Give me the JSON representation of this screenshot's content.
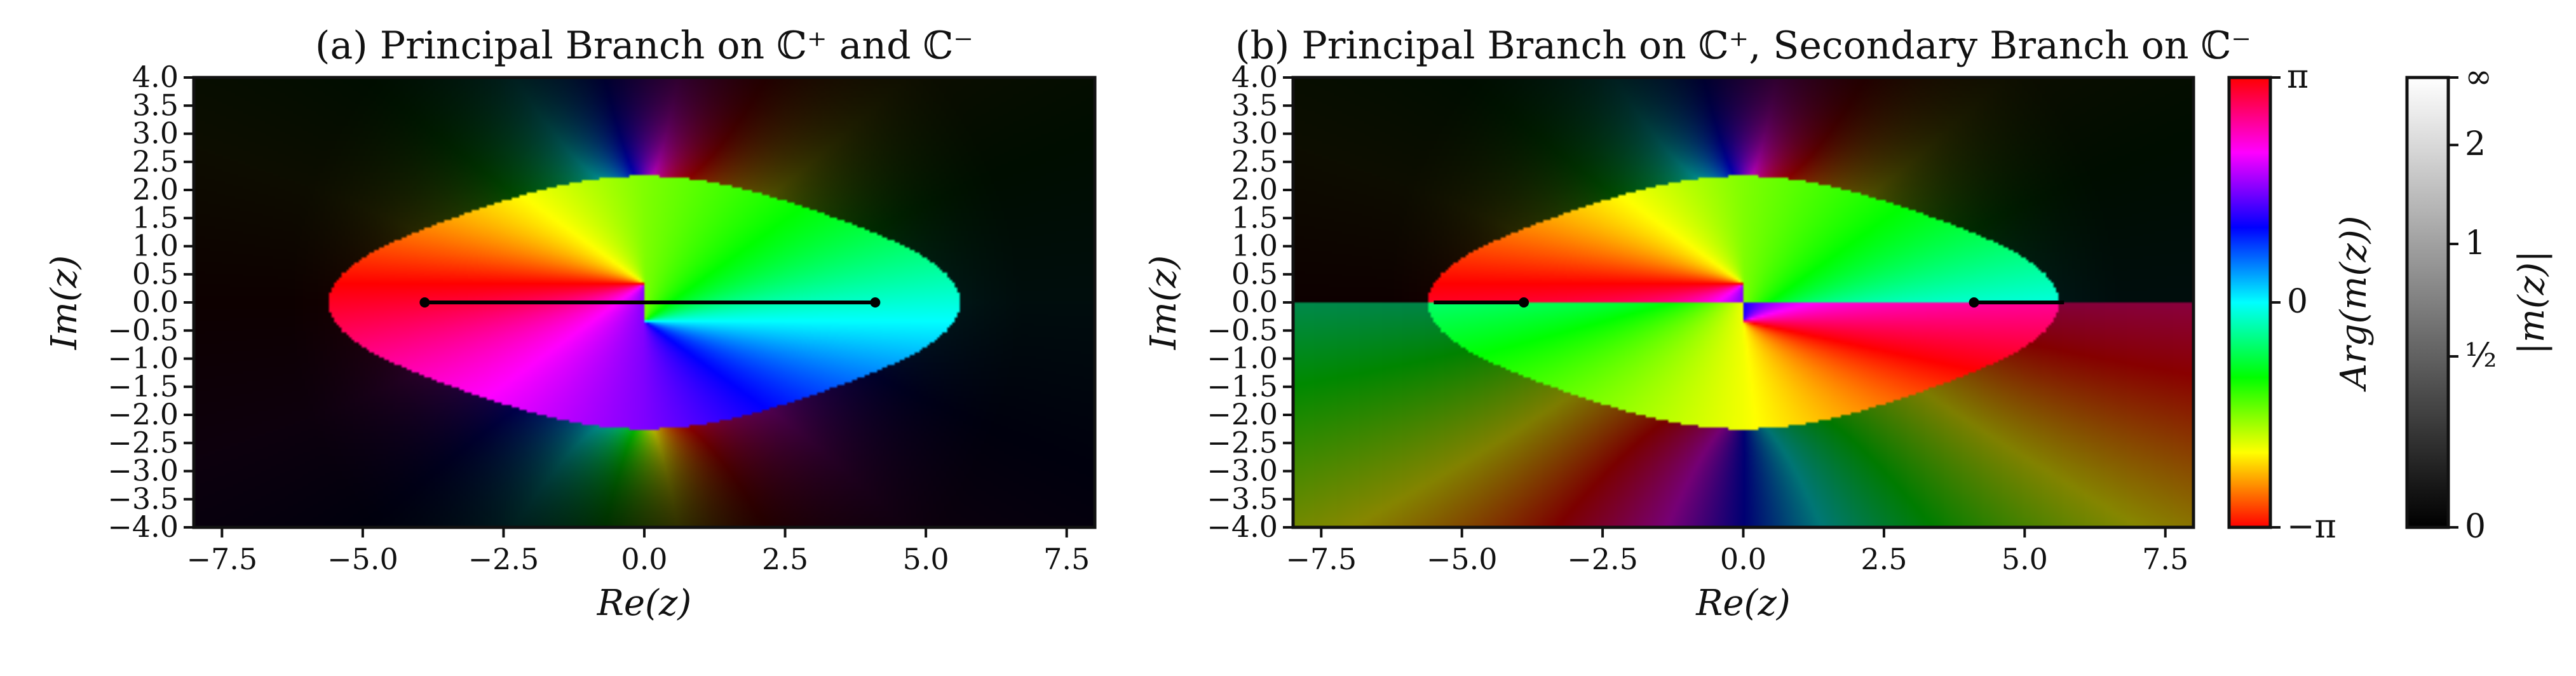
{
  "chart_data": [
    {
      "type": "heatmap",
      "title": "(a) Principal Branch on ℂ⁺ and ℂ⁻",
      "xlabel": "Re(z)",
      "ylabel": "Im(z)",
      "xlim": [
        -8.0,
        8.0
      ],
      "ylim": [
        -4.0,
        4.0
      ],
      "xticks": [
        -7.5,
        -5.0,
        -2.5,
        0.0,
        2.5,
        5.0,
        7.5
      ],
      "xtick_labels": [
        "−7.5",
        "−5.0",
        "−2.5",
        "0.0",
        "2.5",
        "5.0",
        "7.5"
      ],
      "yticks": [
        4.0,
        3.5,
        3.0,
        2.5,
        2.0,
        1.5,
        1.0,
        0.5,
        0.0,
        -0.5,
        -1.0,
        -1.5,
        -2.0,
        -2.5,
        -3.0,
        -3.5,
        -4.0
      ],
      "ytick_labels": [
        "4.0",
        "3.5",
        "3.0",
        "2.5",
        "2.0",
        "1.5",
        "1.0",
        "0.5",
        "0.0",
        "−0.5",
        "−1.0",
        "−1.5",
        "−2.0",
        "−2.5",
        "−3.0",
        "−3.5",
        "−4.0"
      ],
      "branch_cut": {
        "x": [
          -3.9,
          4.1
        ],
        "y": [
          0.0,
          0.0
        ]
      },
      "branch": "principal"
    },
    {
      "type": "heatmap",
      "title": "(b) Principal Branch on ℂ⁺, Secondary Branch on ℂ⁻",
      "xlabel": "Re(z)",
      "ylabel": "Im(z)",
      "xlim": [
        -8.0,
        8.0
      ],
      "ylim": [
        -4.0,
        4.0
      ],
      "xticks": [
        -7.5,
        -5.0,
        -2.5,
        0.0,
        2.5,
        5.0,
        7.5
      ],
      "xtick_labels": [
        "−7.5",
        "−5.0",
        "−2.5",
        "0.0",
        "2.5",
        "5.0",
        "7.5"
      ],
      "yticks": [
        4.0,
        3.5,
        3.0,
        2.5,
        2.0,
        1.5,
        1.0,
        0.5,
        0.0,
        -0.5,
        -1.0,
        -1.5,
        -2.0,
        -2.5,
        -3.0,
        -3.5,
        -4.0
      ],
      "ytick_labels": [
        "4.0",
        "3.5",
        "3.0",
        "2.5",
        "2.0",
        "1.5",
        "1.0",
        "0.5",
        "0.0",
        "−0.5",
        "−1.0",
        "−1.5",
        "−2.0",
        "−2.5",
        "−3.0",
        "−3.5",
        "−4.0"
      ],
      "branch_cuts": [
        {
          "x": [
            -5.5,
            -3.9
          ],
          "y": [
            0.0,
            0.0
          ]
        },
        {
          "x": [
            4.1,
            5.7
          ],
          "y": [
            0.0,
            0.0
          ]
        }
      ],
      "branch": "secondary"
    }
  ],
  "colorbars": [
    {
      "label": "Arg(m(z))",
      "range": [
        -3.1416,
        3.1416
      ],
      "ticks": [
        3.1416,
        0,
        -3.1416
      ],
      "tick_labels": [
        "π",
        "0",
        "−π"
      ]
    },
    {
      "label": "|m(z)|",
      "ticks": [
        9999,
        2,
        1,
        0.5,
        0
      ],
      "tick_labels": [
        "∞",
        "2",
        "1",
        "½",
        "0"
      ]
    }
  ]
}
